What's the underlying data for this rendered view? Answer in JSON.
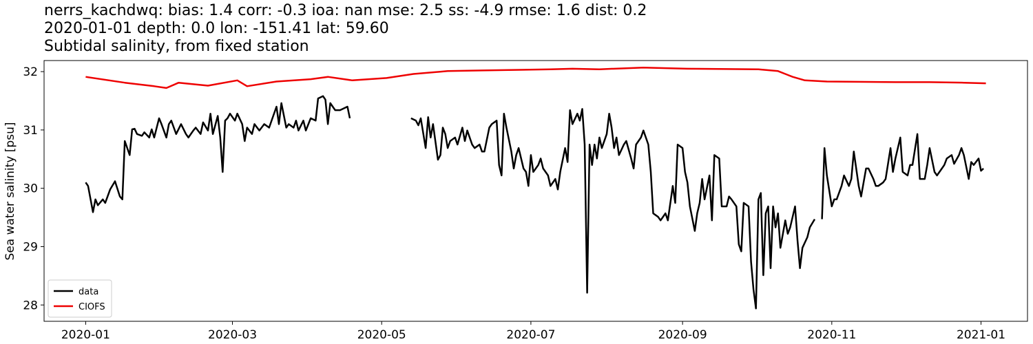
{
  "chart_data": {
    "type": "line",
    "title_lines": [
      "nerrs_kachdwq: bias: 1.4  corr: -0.3  ioa: nan  mse: 2.5  ss: -4.9  rmse: 1.6  dist: 0.2",
      "2020-01-01 depth: 0.0 lon: -151.41 lat: 59.60",
      "Subtidal salinity, from fixed station"
    ],
    "ylabel": "Sea water salinity [psu]",
    "xlim": [
      18245,
      18647
    ],
    "ylim": [
      27.72,
      32.19
    ],
    "xticks": [
      {
        "value": 18262,
        "label": "2020-01"
      },
      {
        "value": 18322,
        "label": "2020-03"
      },
      {
        "value": 18383,
        "label": "2020-05"
      },
      {
        "value": 18444,
        "label": "2020-07"
      },
      {
        "value": 18506,
        "label": "2020-09"
      },
      {
        "value": 18567,
        "label": "2020-11"
      },
      {
        "value": 18628,
        "label": "2021-01"
      }
    ],
    "yticks": [
      28,
      29,
      30,
      31,
      32
    ],
    "legend": "lower left",
    "series": [
      {
        "name": "data",
        "color": "#000000",
        "x": [
          18262,
          18263,
          18265,
          18266,
          18267,
          18269,
          18270,
          18272,
          18274,
          18276,
          18277,
          18278,
          18280,
          18281,
          18282,
          18283,
          18285,
          18286,
          18288,
          18289,
          18290,
          18292,
          18293,
          18295,
          18296,
          18297,
          18299,
          18301,
          18303,
          18304,
          18306,
          18307,
          18309,
          18310,
          18312,
          18313,
          18314,
          18316,
          18317,
          18318,
          18319,
          18320,
          18321,
          18323,
          18324,
          18326,
          18327,
          18328,
          18330,
          18331,
          18333,
          18335,
          18337,
          18340,
          18341,
          18342,
          18344,
          18345,
          18347,
          18348,
          18349,
          18351,
          18352,
          18354,
          18356,
          18357,
          18359,
          18360,
          18361,
          18362,
          18364,
          18366,
          18369,
          18370,
          null,
          18395,
          18397,
          18398,
          18399,
          18401,
          18402,
          18403,
          18404,
          18406,
          18407,
          18408,
          18409,
          18410,
          18411,
          18413,
          18414,
          18416,
          18417,
          18418,
          18420,
          18421,
          18423,
          18424,
          18425,
          18427,
          18428,
          18430,
          18431,
          18432,
          18433,
          18434,
          18436,
          18437,
          18438,
          18439,
          18441,
          18442,
          18443,
          18444,
          18445,
          18447,
          18448,
          18449,
          18451,
          18452,
          18454,
          18455,
          18456,
          18458,
          18459,
          18460,
          18461,
          18463,
          18464,
          18465,
          18466,
          18467,
          18468,
          18469,
          18470,
          18471,
          18472,
          18473,
          18475,
          18476,
          18477,
          18478,
          18479,
          18480,
          18482,
          18483,
          18485,
          18486,
          18487,
          18489,
          18490,
          18492,
          18493,
          18494,
          18496,
          18497,
          18499,
          18500,
          18502,
          18503,
          18504,
          18506,
          18507,
          18508,
          18509,
          18511,
          18512,
          18513,
          18514,
          18515,
          18517,
          18518,
          18519,
          18521,
          18522,
          18524,
          18525,
          18526,
          18528,
          18529,
          18530,
          18531,
          18533,
          18534,
          18535,
          18536,
          18537,
          18538,
          18539,
          18540,
          18541,
          18542,
          18543,
          18544,
          18545,
          18546,
          18548,
          18549,
          18550,
          18552,
          18553,
          18554,
          18555,
          18557,
          18558,
          18560,
          null,
          18563,
          18564,
          18565,
          18567,
          18568,
          18569,
          18571,
          18572,
          18574,
          18575,
          18576,
          18578,
          18579,
          18581,
          18582,
          18584,
          18585,
          18586,
          18588,
          18589,
          18591,
          18592,
          18593,
          18595,
          18596,
          18598,
          18599,
          18600,
          18602,
          18603,
          18605,
          18606,
          18607,
          18609,
          18610,
          18612,
          18613,
          18614,
          18616,
          18617,
          18619,
          18620,
          18621,
          18623,
          18624,
          18625,
          18627,
          18628,
          18629
        ],
        "values": [
          30.1,
          30.04,
          29.59,
          29.81,
          29.71,
          29.81,
          29.75,
          29.98,
          30.12,
          29.86,
          29.81,
          30.81,
          30.57,
          31.01,
          31.02,
          30.93,
          30.9,
          30.96,
          30.87,
          31.01,
          30.87,
          31.2,
          31.1,
          30.87,
          31.1,
          31.16,
          30.93,
          31.1,
          30.93,
          30.87,
          30.99,
          31.04,
          30.93,
          31.13,
          30.99,
          31.28,
          30.93,
          31.24,
          30.87,
          30.28,
          31.16,
          31.2,
          31.28,
          31.16,
          31.28,
          31.1,
          30.81,
          31.04,
          30.93,
          31.1,
          30.99,
          31.1,
          31.04,
          31.4,
          31.1,
          31.46,
          31.04,
          31.1,
          31.04,
          31.16,
          30.99,
          31.16,
          30.99,
          31.2,
          31.16,
          31.54,
          31.58,
          31.52,
          31.1,
          31.46,
          31.34,
          31.34,
          31.4,
          31.2,
          null,
          31.2,
          31.16,
          31.08,
          31.2,
          30.69,
          31.22,
          30.87,
          31.1,
          30.49,
          30.57,
          31.04,
          30.93,
          30.69,
          30.81,
          30.87,
          30.75,
          31.04,
          30.81,
          30.99,
          30.75,
          30.69,
          30.75,
          30.63,
          30.63,
          31.04,
          31.1,
          31.16,
          30.4,
          30.22,
          31.28,
          31.04,
          30.63,
          30.34,
          30.57,
          30.69,
          30.34,
          30.28,
          30.04,
          30.57,
          30.28,
          30.4,
          30.51,
          30.34,
          30.22,
          30.04,
          30.16,
          29.98,
          30.28,
          30.69,
          30.45,
          31.34,
          31.1,
          31.28,
          31.16,
          31.36,
          30.75,
          28.21,
          30.75,
          30.4,
          30.75,
          30.51,
          30.87,
          30.69,
          30.93,
          31.28,
          31.04,
          30.69,
          30.87,
          30.57,
          30.75,
          30.81,
          30.51,
          30.34,
          30.75,
          30.87,
          30.99,
          30.75,
          30.28,
          29.57,
          29.51,
          29.45,
          29.57,
          29.45,
          30.04,
          29.75,
          30.75,
          30.69,
          30.28,
          30.1,
          29.69,
          29.27,
          29.57,
          29.75,
          30.16,
          29.81,
          30.22,
          29.45,
          30.57,
          30.51,
          29.69,
          29.69,
          29.86,
          29.81,
          29.69,
          29.04,
          28.92,
          29.75,
          29.69,
          28.74,
          28.27,
          27.94,
          29.81,
          29.92,
          28.51,
          29.57,
          29.69,
          28.63,
          29.69,
          29.33,
          29.57,
          28.98,
          29.45,
          29.22,
          29.33,
          29.69,
          29.1,
          28.63,
          28.98,
          29.16,
          29.33,
          29.47,
          null,
          29.47,
          30.69,
          30.22,
          29.69,
          29.81,
          29.81,
          30.04,
          30.22,
          30.04,
          30.16,
          30.63,
          30.04,
          29.86,
          30.34,
          30.34,
          30.16,
          30.04,
          30.04,
          30.1,
          30.16,
          30.69,
          30.28,
          30.51,
          30.87,
          30.28,
          30.22,
          30.4,
          30.4,
          30.93,
          30.16,
          30.16,
          30.4,
          30.69,
          30.28,
          30.22,
          30.34,
          30.4,
          30.51,
          30.57,
          30.42,
          30.57,
          30.69,
          30.57,
          30.16,
          30.45,
          30.4,
          30.51,
          30.3,
          30.34
        ]
      },
      {
        "name": "CIOFS",
        "color": "#ee0000",
        "x": [
          18262,
          18278,
          18290,
          18295,
          18300,
          18312,
          18324,
          18328,
          18340,
          18354,
          18361,
          18371,
          18385,
          18396,
          18410,
          18424,
          18452,
          18461,
          18472,
          18490,
          18508,
          18537,
          18545,
          18551,
          18556,
          18565,
          18593,
          18607,
          18621,
          18630
        ],
        "values": [
          31.91,
          31.81,
          31.75,
          31.72,
          31.81,
          31.76,
          31.85,
          31.75,
          31.83,
          31.87,
          31.91,
          31.85,
          31.89,
          31.96,
          32.01,
          32.02,
          32.04,
          32.05,
          32.04,
          32.07,
          32.05,
          32.04,
          32.01,
          31.91,
          31.85,
          31.83,
          31.82,
          31.82,
          31.81,
          31.8
        ]
      }
    ]
  }
}
